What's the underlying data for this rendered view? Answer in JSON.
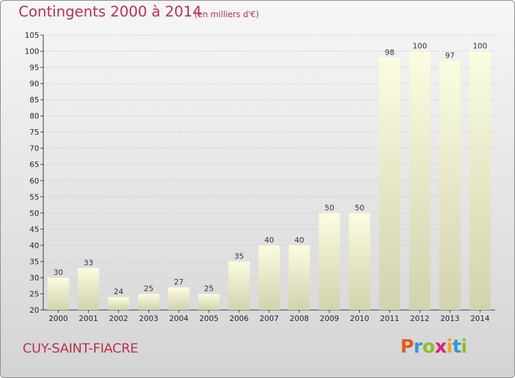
{
  "title": "Contingents 2000 à 2014",
  "subtitle": "(en milliers d'€)",
  "commune": "CUY-SAINT-FIACRE",
  "logo": "Proxiti",
  "colors": {
    "title": "#b8324f",
    "bar_top": "#fcfce0",
    "bar_bottom": "#d2d2ae",
    "axis": "#333333",
    "grid": "#cccccc"
  },
  "chart_data": {
    "type": "bar",
    "categories": [
      "2000",
      "2001",
      "2002",
      "2003",
      "2004",
      "2005",
      "2006",
      "2007",
      "2008",
      "2009",
      "2010",
      "2011",
      "2012",
      "2013",
      "2014"
    ],
    "values": [
      30,
      33,
      24,
      25,
      27,
      25,
      35,
      40,
      40,
      50,
      50,
      98,
      100,
      97,
      100
    ],
    "ylim": [
      20,
      105
    ],
    "yticks": [
      20,
      25,
      30,
      35,
      40,
      45,
      50,
      55,
      60,
      65,
      70,
      75,
      80,
      85,
      90,
      95,
      100,
      105
    ],
    "grid": true,
    "data_labels": true
  }
}
